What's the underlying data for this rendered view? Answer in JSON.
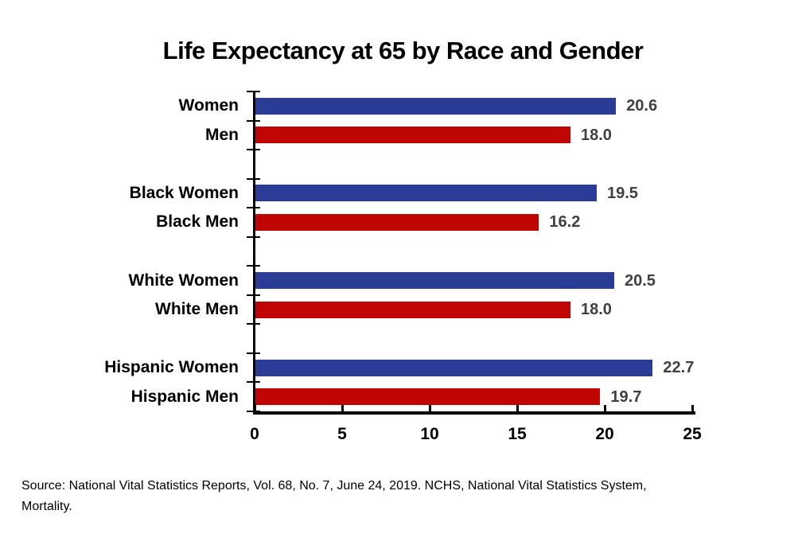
{
  "page": {
    "background": "#ffffff"
  },
  "chart_data": {
    "type": "bar",
    "orientation": "horizontal",
    "title": "Life Expectancy at 65 by Race and Gender",
    "categories": [
      "Women",
      "Men",
      "Black Women",
      "Black Men",
      "White Women",
      "White Men",
      "Hispanic Women",
      "Hispanic Men"
    ],
    "values": [
      20.6,
      18.0,
      19.5,
      16.2,
      20.5,
      18.0,
      22.7,
      19.7
    ],
    "bars": [
      {
        "label": "Women",
        "series": "women",
        "value": 20.6,
        "display": "20.6"
      },
      {
        "label": "Men",
        "series": "men",
        "value": 18.0,
        "display": "18.0"
      },
      {
        "label": "Black Women",
        "series": "women",
        "value": 19.5,
        "display": "19.5"
      },
      {
        "label": "Black Men",
        "series": "men",
        "value": 16.2,
        "display": "16.2"
      },
      {
        "label": "White Women",
        "series": "women",
        "value": 20.5,
        "display": "20.5"
      },
      {
        "label": "White Men",
        "series": "men",
        "value": 18.0,
        "display": "18.0"
      },
      {
        "label": "Hispanic Women",
        "series": "women",
        "value": 22.7,
        "display": "22.7"
      },
      {
        "label": "Hispanic Men",
        "series": "men",
        "value": 19.7,
        "display": "19.7"
      }
    ],
    "group_size": 2,
    "xlim": [
      0,
      25
    ],
    "x_ticks": [
      0,
      5,
      10,
      15,
      20,
      25
    ],
    "grid": false,
    "legend": "none",
    "colors": {
      "women": "#2B3C96",
      "men": "#C00505"
    },
    "value_label_color": "#404040",
    "axis_color": "#000000"
  },
  "source": {
    "lines": [
      "Source: National Vital Statistics Reports, Vol. 68, No. 7, June 24, 2019. NCHS, National Vital Statistics System,",
      "Mortality."
    ],
    "full_text": "Source: National Vital Statistics Reports, Vol. 68, No. 7, June 24, 2019. NCHS, National Vital Statistics System, Mortality."
  }
}
